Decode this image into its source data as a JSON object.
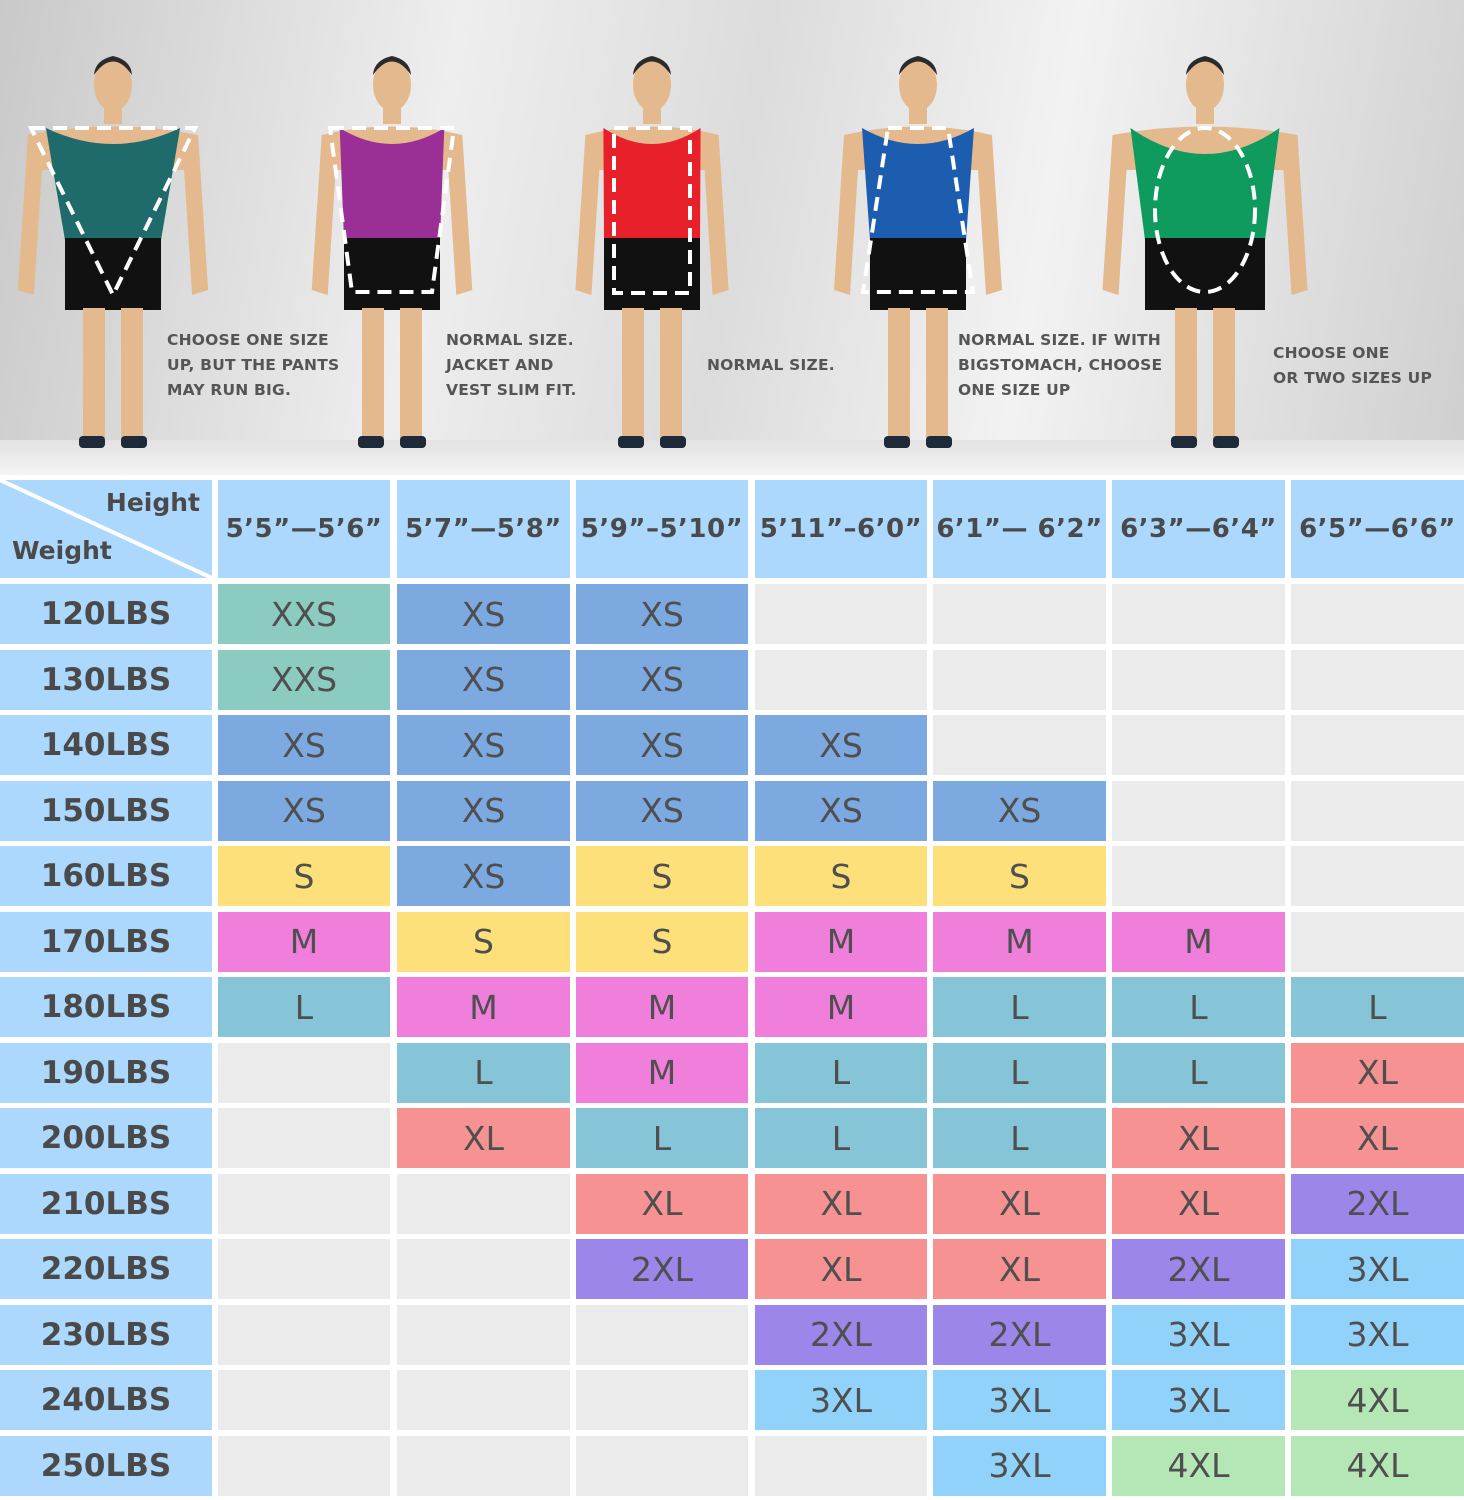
{
  "body_types": [
    {
      "note": "CHOOSE ONE SIZE\nUP, BUT THE PANTS\nMAY RUN BIG.",
      "tank_color": "#1f6b6b",
      "shape": "inverted-triangle"
    },
    {
      "note": "NORMAL SIZE.\nJACKET AND\nVEST SLIM FIT.",
      "tank_color": "#9a2f95",
      "shape": "trapezoid"
    },
    {
      "note": "NORMAL SIZE.",
      "tank_color": "#e8202a",
      "shape": "rectangle"
    },
    {
      "note": "NORMAL SIZE. IF WITH\nBIGSTOMACH, CHOOSE\nONE SIZE UP",
      "tank_color": "#1c5db0",
      "shape": "triangle"
    },
    {
      "note": "CHOOSE ONE\nOR TWO SIZES UP",
      "tank_color": "#0f9a5e",
      "shape": "oval"
    }
  ],
  "table": {
    "corner_height_label": "Height",
    "corner_weight_label": "Weight",
    "heights": [
      "5’5”—5’6”",
      "5’7”—5’8”",
      "5’9”–5’10”",
      "5’11”–6’0”",
      "6’1”— 6’2”",
      "6’3”—6’4”",
      "6’5”—6’6”"
    ],
    "rows": [
      {
        "weight": "120LBS",
        "sizes": [
          "XXS",
          "XS",
          "XS",
          "",
          "",
          "",
          ""
        ]
      },
      {
        "weight": "130LBS",
        "sizes": [
          "XXS",
          "XS",
          "XS",
          "",
          "",
          "",
          ""
        ]
      },
      {
        "weight": "140LBS",
        "sizes": [
          "XS",
          "XS",
          "XS",
          "XS",
          "",
          "",
          ""
        ]
      },
      {
        "weight": "150LBS",
        "sizes": [
          "XS",
          "XS",
          "XS",
          "XS",
          "XS",
          "",
          ""
        ]
      },
      {
        "weight": "160LBS",
        "sizes": [
          "S",
          "XS",
          "S",
          "S",
          "S",
          "",
          ""
        ]
      },
      {
        "weight": "170LBS",
        "sizes": [
          "M",
          "S",
          "S",
          "M",
          "M",
          "M",
          ""
        ]
      },
      {
        "weight": "180LBS",
        "sizes": [
          "L",
          "M",
          "M",
          "M",
          "L",
          "L",
          "L"
        ]
      },
      {
        "weight": "190LBS",
        "sizes": [
          "",
          "L",
          "M",
          "L",
          "L",
          "L",
          "XL"
        ]
      },
      {
        "weight": "200LBS",
        "sizes": [
          "",
          "XL",
          "L",
          "L",
          "L",
          "XL",
          "XL"
        ]
      },
      {
        "weight": "210LBS",
        "sizes": [
          "",
          "",
          "XL",
          "XL",
          "XL",
          "XL",
          "2XL"
        ]
      },
      {
        "weight": "220LBS",
        "sizes": [
          "",
          "",
          "2XL",
          "XL",
          "XL",
          "2XL",
          "3XL"
        ]
      },
      {
        "weight": "230LBS",
        "sizes": [
          "",
          "",
          "",
          "2XL",
          "2XL",
          "3XL",
          "3XL"
        ]
      },
      {
        "weight": "240LBS",
        "sizes": [
          "",
          "",
          "",
          "3XL",
          "3XL",
          "3XL",
          "4XL"
        ]
      },
      {
        "weight": "250LBS",
        "sizes": [
          "",
          "",
          "",
          "",
          "3XL",
          "4XL",
          "4XL"
        ]
      }
    ]
  },
  "colors": {
    "header": "#acd8fd",
    "empty": "#ebebeb",
    "XXS": "#8ccbc0",
    "XS": "#7da9e1",
    "S": "#fde07a",
    "M": "#f07fdc",
    "L": "#86c5d8",
    "XL": "#f79292",
    "2XL": "#9d86e9",
    "3XL": "#90d2f9",
    "4XL": "#b5e6b5"
  }
}
